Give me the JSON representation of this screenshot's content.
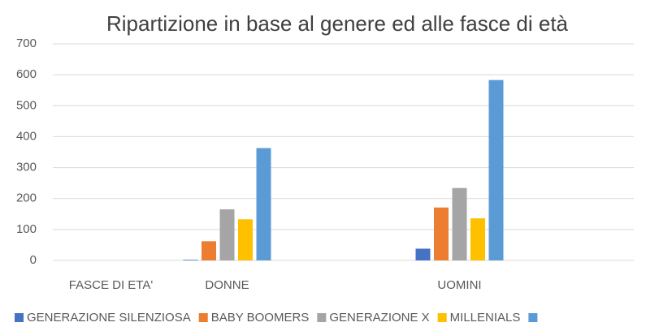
{
  "chart_data": {
    "type": "bar",
    "title": "Ripartizione in base al genere ed alle fasce di età",
    "categories": [
      "FASCE DI ETA'",
      "DONNE",
      null,
      "UOMINI",
      null
    ],
    "series": [
      {
        "name": "GENERAZIONE SILENZIOSA",
        "color": "#4472c4",
        "values": [
          null,
          2,
          null,
          38,
          null
        ]
      },
      {
        "name": "BABY BOOMERS",
        "color": "#ed7d31",
        "values": [
          null,
          62,
          null,
          171,
          null
        ]
      },
      {
        "name": "GENERAZIONE X",
        "color": "#a5a5a5",
        "values": [
          null,
          165,
          null,
          234,
          null
        ]
      },
      {
        "name": "MILLENIALS",
        "color": "#ffc000",
        "values": [
          null,
          133,
          null,
          136,
          null
        ]
      },
      {
        "color": "#5b9bd5",
        "values": [
          null,
          363,
          null,
          583,
          null
        ]
      }
    ],
    "ylim": [
      0,
      700
    ],
    "yticks": [
      0,
      100,
      200,
      300,
      400,
      500,
      600,
      700
    ],
    "grid": true,
    "legend": "bottom"
  }
}
